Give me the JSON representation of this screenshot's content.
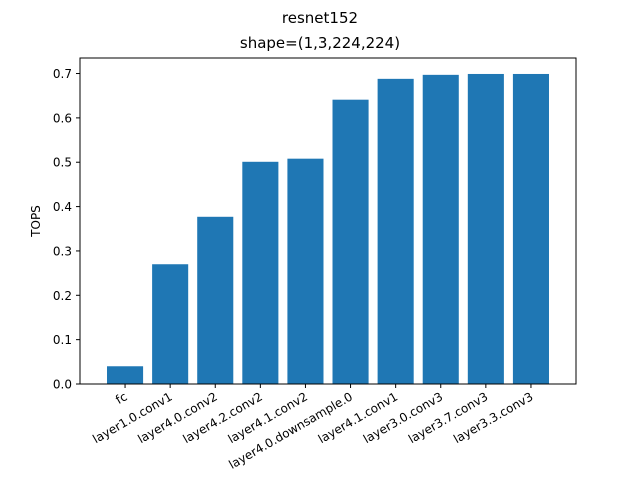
{
  "chart_data": {
    "type": "bar",
    "title": "resnet152",
    "subtitle": "shape=(1,3,224,224)",
    "xlabel": "",
    "ylabel": "TOPS",
    "ylim": [
      0,
      0.735
    ],
    "yticks": [
      0.0,
      0.1,
      0.2,
      0.3,
      0.4,
      0.5,
      0.6,
      0.7
    ],
    "ytick_labels": [
      "0.0",
      "0.1",
      "0.2",
      "0.3",
      "0.4",
      "0.5",
      "0.6",
      "0.7"
    ],
    "categories": [
      "fc",
      "layer1.0.conv1",
      "layer4.0.conv2",
      "layer4.2.conv2",
      "layer4.1.conv2",
      "layer4.0.downsample.0",
      "layer4.1.conv1",
      "layer3.0.conv3",
      "layer3.7.conv3",
      "layer3.3.conv3"
    ],
    "values": [
      0.04,
      0.27,
      0.377,
      0.501,
      0.508,
      0.641,
      0.688,
      0.697,
      0.699,
      0.699
    ],
    "bar_color": "#1f77b4",
    "grid": false,
    "legend": "none"
  }
}
